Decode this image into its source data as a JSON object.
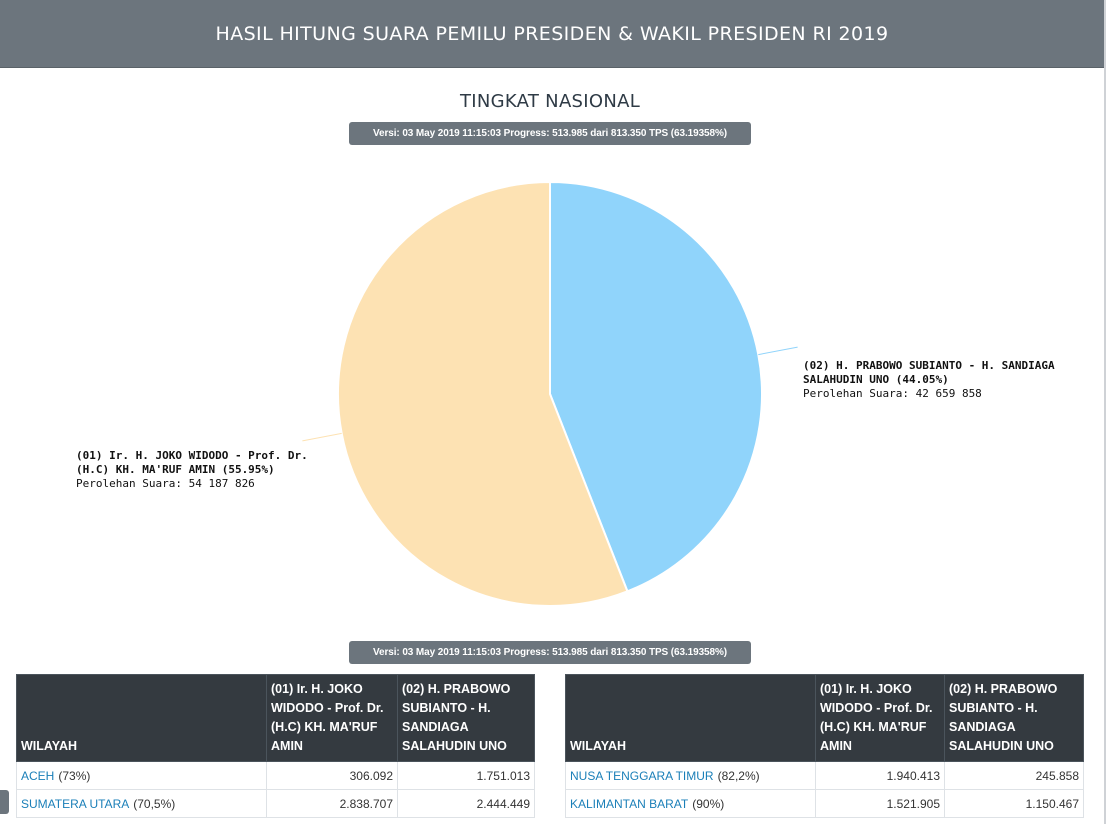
{
  "header": {
    "title": "HASIL HITUNG SUARA PEMILU PRESIDEN & WAKIL PRESIDEN RI 2019"
  },
  "subtitle": "TINGKAT NASIONAL",
  "version_badge": "Versi: 03 May 2019 11:15:03 Progress: 513.985 dari 813.350 TPS (63.19358%)",
  "chart_data": {
    "type": "pie",
    "series": [
      {
        "name": "(01) Ir. H. JOKO WIDODO - Prof. Dr. (H.C) KH. MA'RUF AMIN",
        "label": "(01) Ir. H. JOKO WIDODO - Prof. Dr. (H.C) KH. MA'RUF AMIN (55.95%)",
        "votes_text": "Perolehan Suara: 54 187 826",
        "value": 54187826,
        "percent": 55.95,
        "color": "#fde2b3"
      },
      {
        "name": "(02) H. PRABOWO SUBIANTO - H. SANDIAGA SALAHUDIN UNO",
        "label": "(02) H. PRABOWO SUBIANTO - H. SANDIAGA SALAHUDIN UNO (44.05%)",
        "votes_text": "Perolehan Suara: 42 659 858",
        "value": 42659858,
        "percent": 44.05,
        "color": "#90d4fb"
      }
    ]
  },
  "tables": {
    "col_region": "WILAYAH",
    "col_01": "(01) Ir. H. JOKO WIDODO - Prof. Dr. (H.C) KH. MA'RUF AMIN",
    "col_02": "(02) H. PRABOWO SUBIANTO - H. SANDIAGA SALAHUDIN UNO",
    "left_rows": [
      {
        "region": "ACEH",
        "pct": "(73%)",
        "v01": "306.092",
        "v02": "1.751.013"
      },
      {
        "region": "SUMATERA UTARA",
        "pct": "(70,5%)",
        "v01": "2.838.707",
        "v02": "2.444.449"
      }
    ],
    "right_rows": [
      {
        "region": "NUSA TENGGARA TIMUR",
        "pct": "(82,2%)",
        "v01": "1.940.413",
        "v02": "245.858"
      },
      {
        "region": "KALIMANTAN BARAT",
        "pct": "(90%)",
        "v01": "1.521.905",
        "v02": "1.150.467"
      }
    ]
  }
}
